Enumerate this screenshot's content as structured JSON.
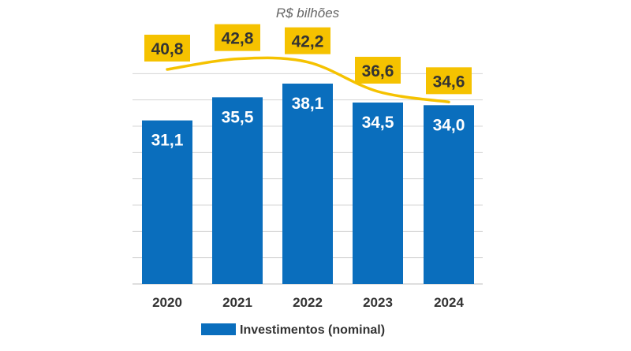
{
  "chart_data": {
    "type": "bar",
    "unit_label": "R$ bilhões",
    "categories": [
      "2020",
      "2021",
      "2022",
      "2023",
      "2024"
    ],
    "series": [
      {
        "name": "Investimentos (nominal)",
        "type": "bar",
        "values": [
          31.1,
          35.5,
          38.1,
          34.5,
          34.0
        ],
        "labels": [
          "31,1",
          "35,5",
          "38,1",
          "34,5",
          "34,0"
        ],
        "color": "#0a6ebd"
      },
      {
        "type": "line",
        "values": [
          40.8,
          42.8,
          42.2,
          36.6,
          34.6
        ],
        "labels": [
          "40,8",
          "42,8",
          "42,2",
          "36,6",
          "34,6"
        ],
        "color": "#f5c200"
      }
    ],
    "ylim": [
      0,
      45
    ],
    "grid": true,
    "legend": {
      "position": "bottom",
      "entries": [
        "Investimentos (nominal)"
      ]
    },
    "label_box_color": "#f5c200"
  }
}
